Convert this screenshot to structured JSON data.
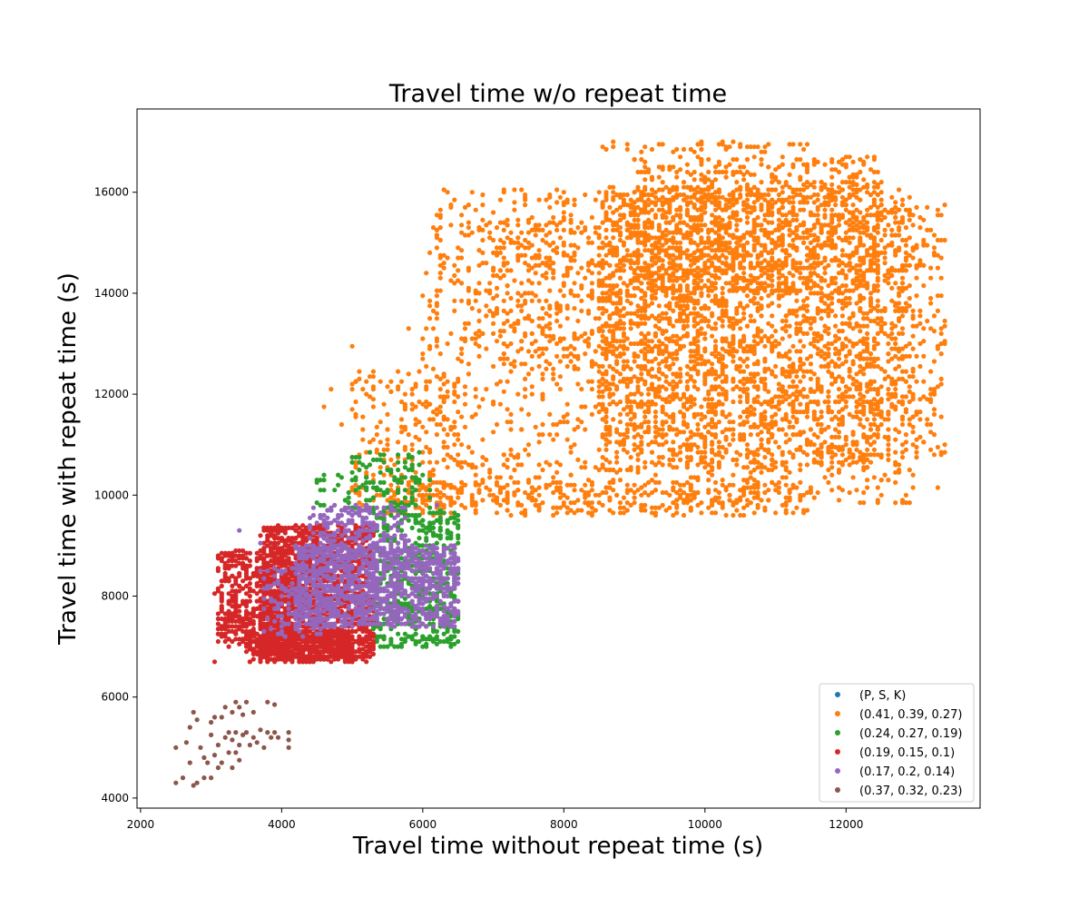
{
  "chart_data": {
    "type": "scatter",
    "title": "Travel time w/o repeat time",
    "xlabel": "Travel time without repeat time (s)",
    "ylabel": "Travel time with repeat time (s)",
    "xlim": [
      1950,
      13900
    ],
    "ylim": [
      3800,
      17650
    ],
    "xticks": [
      2000,
      4000,
      6000,
      8000,
      10000,
      12000
    ],
    "yticks": [
      4000,
      6000,
      8000,
      10000,
      12000,
      14000,
      16000
    ],
    "grid": false,
    "legend_position": "bottom-right",
    "series": [
      {
        "name": "(P, S, K)",
        "color": "#1f77b4",
        "clusters": []
      },
      {
        "name": "(0.41, 0.39, 0.27)",
        "color": "#ff7f0e",
        "clusters": [
          {
            "x": [
              6000,
              13000
            ],
            "y": [
              9800,
              16100
            ],
            "count": 1600
          },
          {
            "x": [
              8500,
              12500
            ],
            "y": [
              10500,
              16100
            ],
            "count": 2200
          },
          {
            "x": [
              9000,
              12500
            ],
            "y": [
              14000,
              16700
            ],
            "count": 700
          },
          {
            "x": [
              8500,
              11500
            ],
            "y": [
              16800,
              17000
            ],
            "count": 40
          },
          {
            "x": [
              5000,
              6500
            ],
            "y": [
              9600,
              12500
            ],
            "count": 220
          },
          {
            "x": [
              7000,
              10500
            ],
            "y": [
              12500,
              15500
            ],
            "count": 450
          },
          {
            "x": [
              12500,
              13400
            ],
            "y": [
              10800,
              15800
            ],
            "count": 260
          },
          {
            "x": [
              5500,
              11500
            ],
            "y": [
              9600,
              10300
            ],
            "count": 350
          }
        ],
        "points": [
          {
            "x": 13300,
            "y": 10150
          },
          {
            "x": 12500,
            "y": 10000
          },
          {
            "x": 4700,
            "y": 12100
          },
          {
            "x": 4600,
            "y": 11750
          },
          {
            "x": 4850,
            "y": 11400
          },
          {
            "x": 5800,
            "y": 13300
          },
          {
            "x": 5000,
            "y": 12950
          },
          {
            "x": 6800,
            "y": 13450
          },
          {
            "x": 7600,
            "y": 15300
          },
          {
            "x": 10400,
            "y": 17000
          },
          {
            "x": 8700,
            "y": 17000
          },
          {
            "x": 11800,
            "y": 16600
          }
        ]
      },
      {
        "name": "(0.24, 0.27, 0.19)",
        "color": "#2ca02c",
        "clusters": [
          {
            "x": [
              5300,
              6500
            ],
            "y": [
              7000,
              9700
            ],
            "count": 550
          },
          {
            "x": [
              4500,
              6100
            ],
            "y": [
              9700,
              10400
            ],
            "count": 90
          },
          {
            "x": [
              5000,
              6000
            ],
            "y": [
              10300,
              10850
            ],
            "count": 45
          }
        ],
        "points": [
          {
            "x": 6400,
            "y": 7000
          },
          {
            "x": 5700,
            "y": 7000
          },
          {
            "x": 6200,
            "y": 7200
          }
        ]
      },
      {
        "name": "(0.19, 0.15, 0.1)",
        "color": "#d62728",
        "clusters": [
          {
            "x": [
              3700,
              5300
            ],
            "y": [
              6700,
              9400
            ],
            "count": 1700
          },
          {
            "x": [
              3100,
              4200
            ],
            "y": [
              7000,
              8900
            ],
            "count": 500
          },
          {
            "x": [
              3500,
              5000
            ],
            "y": [
              6700,
              7300
            ],
            "count": 400
          }
        ],
        "points": [
          {
            "x": 3050,
            "y": 8050
          },
          {
            "x": 3100,
            "y": 7100
          },
          {
            "x": 3050,
            "y": 6700
          }
        ]
      },
      {
        "name": "(0.17, 0.2, 0.14)",
        "color": "#9467bd",
        "clusters": [
          {
            "x": [
              4200,
              6500
            ],
            "y": [
              7400,
              9000
            ],
            "count": 1100
          },
          {
            "x": [
              4400,
              5800
            ],
            "y": [
              8800,
              9800
            ],
            "count": 220
          },
          {
            "x": [
              3700,
              4700
            ],
            "y": [
              7200,
              8600
            ],
            "count": 120
          }
        ],
        "points": [
          {
            "x": 3400,
            "y": 9300
          },
          {
            "x": 3700,
            "y": 9050
          },
          {
            "x": 6200,
            "y": 9800
          }
        ]
      },
      {
        "name": "(0.37, 0.32, 0.23)",
        "color": "#8c564b",
        "clusters": [],
        "points": [
          {
            "x": 2500,
            "y": 5000
          },
          {
            "x": 2500,
            "y": 4300
          },
          {
            "x": 2600,
            "y": 4400
          },
          {
            "x": 2650,
            "y": 5100
          },
          {
            "x": 2700,
            "y": 4700
          },
          {
            "x": 2700,
            "y": 5400
          },
          {
            "x": 2750,
            "y": 5700
          },
          {
            "x": 2750,
            "y": 4250
          },
          {
            "x": 2800,
            "y": 5550
          },
          {
            "x": 2800,
            "y": 4300
          },
          {
            "x": 2850,
            "y": 5000
          },
          {
            "x": 2900,
            "y": 4800
          },
          {
            "x": 2900,
            "y": 4400
          },
          {
            "x": 2950,
            "y": 4700
          },
          {
            "x": 3000,
            "y": 5250
          },
          {
            "x": 3000,
            "y": 5500
          },
          {
            "x": 3000,
            "y": 4400
          },
          {
            "x": 3050,
            "y": 4850
          },
          {
            "x": 3050,
            "y": 5600
          },
          {
            "x": 3100,
            "y": 5050
          },
          {
            "x": 3100,
            "y": 4600
          },
          {
            "x": 3150,
            "y": 5600
          },
          {
            "x": 3150,
            "y": 4700
          },
          {
            "x": 3200,
            "y": 5800
          },
          {
            "x": 3200,
            "y": 5200
          },
          {
            "x": 3250,
            "y": 5300
          },
          {
            "x": 3250,
            "y": 4900
          },
          {
            "x": 3300,
            "y": 5150
          },
          {
            "x": 3300,
            "y": 5700
          },
          {
            "x": 3300,
            "y": 4600
          },
          {
            "x": 3350,
            "y": 5900
          },
          {
            "x": 3350,
            "y": 5300
          },
          {
            "x": 3350,
            "y": 4900
          },
          {
            "x": 3400,
            "y": 5800
          },
          {
            "x": 3400,
            "y": 5050
          },
          {
            "x": 3400,
            "y": 4750
          },
          {
            "x": 3450,
            "y": 5250
          },
          {
            "x": 3450,
            "y": 5650
          },
          {
            "x": 3500,
            "y": 5900
          },
          {
            "x": 3500,
            "y": 5300
          },
          {
            "x": 3550,
            "y": 5050
          },
          {
            "x": 3600,
            "y": 5700
          },
          {
            "x": 3600,
            "y": 5200
          },
          {
            "x": 3650,
            "y": 5100
          },
          {
            "x": 3700,
            "y": 5350
          },
          {
            "x": 3750,
            "y": 5000
          },
          {
            "x": 3800,
            "y": 5300
          },
          {
            "x": 3800,
            "y": 5900
          },
          {
            "x": 3850,
            "y": 5200
          },
          {
            "x": 3900,
            "y": 5850
          },
          {
            "x": 3900,
            "y": 5300
          },
          {
            "x": 3950,
            "y": 5200
          },
          {
            "x": 4100,
            "y": 5300
          },
          {
            "x": 4100,
            "y": 5000
          },
          {
            "x": 4100,
            "y": 5150
          }
        ]
      }
    ]
  }
}
